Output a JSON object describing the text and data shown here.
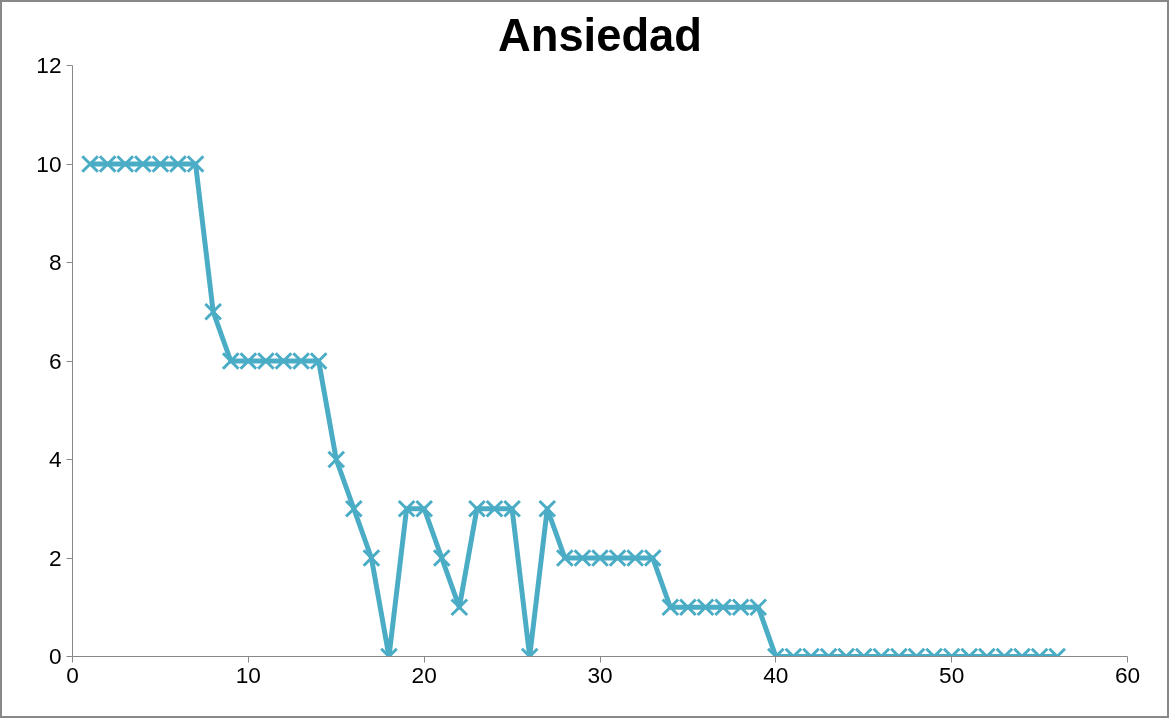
{
  "chart_data": {
    "type": "line",
    "title": "Ansiedad",
    "x": [
      1,
      2,
      3,
      4,
      5,
      6,
      7,
      8,
      9,
      10,
      11,
      12,
      13,
      14,
      15,
      16,
      17,
      18,
      19,
      20,
      21,
      22,
      23,
      24,
      25,
      26,
      27,
      28,
      29,
      30,
      31,
      32,
      33,
      34,
      35,
      36,
      37,
      38,
      39,
      40,
      41,
      42,
      43,
      44,
      45,
      46,
      47,
      48,
      49,
      50,
      51,
      52,
      53,
      54,
      55,
      56
    ],
    "series": [
      {
        "color": "#4bacc6",
        "values": [
          10,
          10,
          10,
          10,
          10,
          10,
          10,
          7,
          6,
          6,
          6,
          6,
          6,
          6,
          4,
          3,
          2,
          0,
          3,
          3,
          2,
          1,
          3,
          3,
          3,
          0,
          3,
          2,
          2,
          2,
          2,
          2,
          2,
          1,
          1,
          1,
          1,
          1,
          1,
          0,
          0,
          0,
          0,
          0,
          0,
          0,
          0,
          0,
          0,
          0,
          0,
          0,
          0,
          0,
          0,
          0
        ]
      }
    ],
    "xlim": [
      0,
      60
    ],
    "xticks": [
      0,
      10,
      20,
      30,
      40,
      50,
      60
    ],
    "ylim": [
      0,
      12
    ],
    "yticks": [
      0,
      2,
      4,
      6,
      8,
      10,
      12
    ],
    "grid": false,
    "marker": "cross",
    "line_style": "solid"
  }
}
